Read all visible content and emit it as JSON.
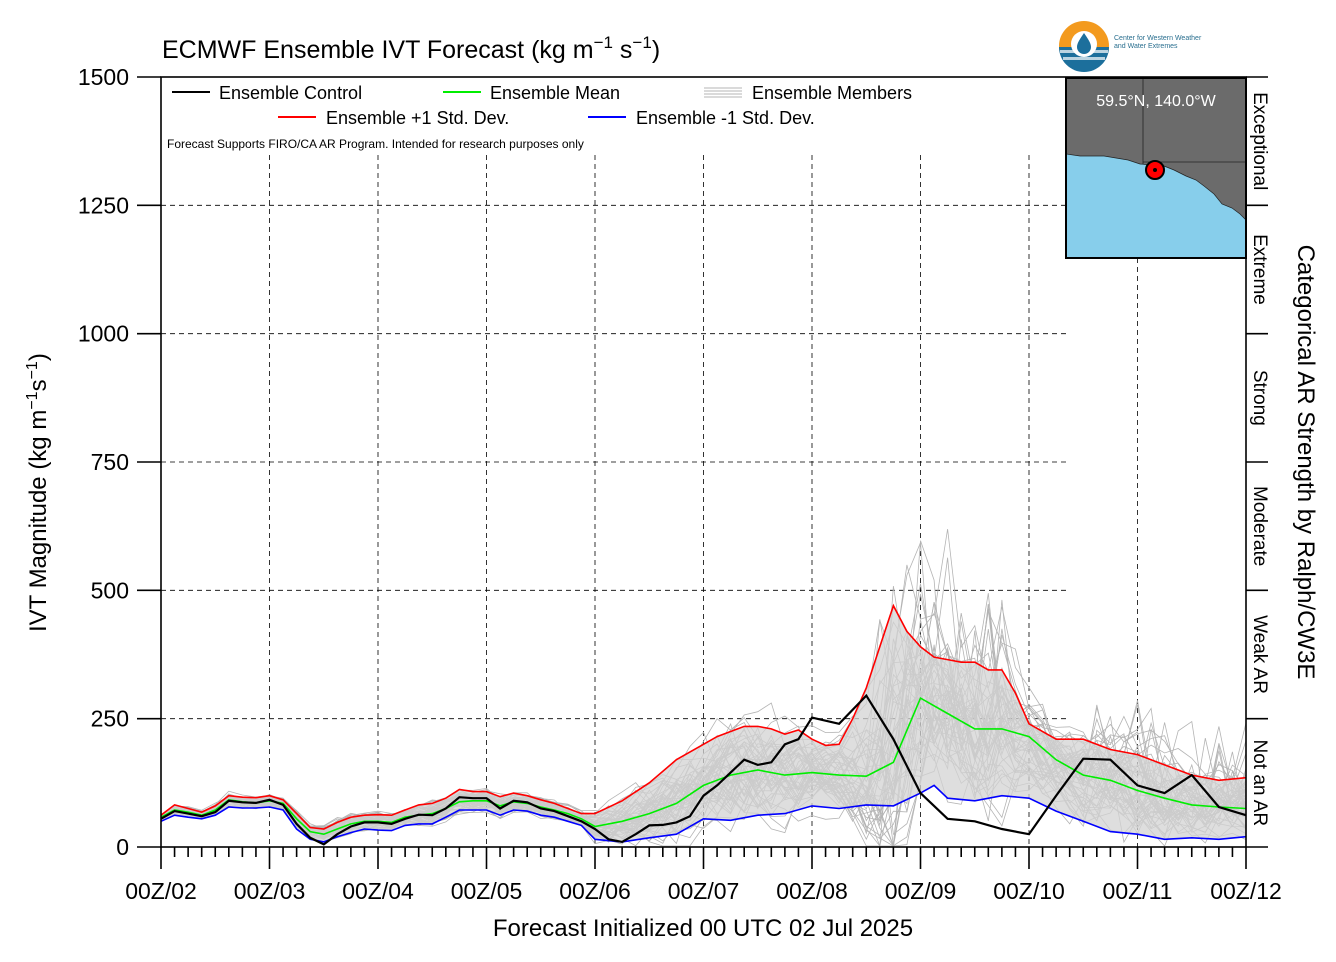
{
  "title_main": "ECMWF Ensemble IVT Forecast (kg m",
  "title_sup1": "−1",
  "title_mid": " s",
  "title_sup2": "−1",
  "title_end": ")",
  "ylabel_main": "IVT Magnitude (kg m",
  "ylabel_sup1": "−1",
  "ylabel_mid": "s",
  "ylabel_sup2": "−1",
  "ylabel_end": ")",
  "right_label": "Categorical AR Strength by Ralph/CW3E",
  "xlabel": "Forecast Initialized 00 UTC 02 Jul 2025",
  "disclaimer": "Forecast Supports FIRO/CA AR Program. Intended for research purposes only",
  "logo": {
    "org_line1": "Center for Western Weather",
    "org_line2": "and Water Extremes"
  },
  "inset": {
    "location": "59.5°N, 140.0°W",
    "ocean_color": "#87ceeb",
    "land_color": "#6b6b6b",
    "marker_color": "#ff0000"
  },
  "legend": {
    "control": "Ensemble Control",
    "mean": "Ensemble Mean",
    "members": "Ensemble Members",
    "plus": "Ensemble +1 Std. Dev.",
    "minus": "Ensemble -1 Std. Dev."
  },
  "categories": [
    {
      "label": "Not an AR",
      "from": 0,
      "to": 250
    },
    {
      "label": "Weak AR",
      "from": 250,
      "to": 500
    },
    {
      "label": "Moderate",
      "from": 500,
      "to": 750
    },
    {
      "label": "Strong",
      "from": 750,
      "to": 1000
    },
    {
      "label": "Extreme",
      "from": 1000,
      "to": 1250
    },
    {
      "label": "Exceptional",
      "from": 1250,
      "to": 1500
    }
  ],
  "chart_data": {
    "type": "line",
    "x_unit": "days since 00Z/02",
    "x_range": [
      0,
      10
    ],
    "xticks": [
      {
        "x": 0,
        "label": "00Z/02"
      },
      {
        "x": 1,
        "label": "00Z/03"
      },
      {
        "x": 2,
        "label": "00Z/04"
      },
      {
        "x": 3,
        "label": "00Z/05"
      },
      {
        "x": 4,
        "label": "00Z/06"
      },
      {
        "x": 5,
        "label": "00Z/07"
      },
      {
        "x": 6,
        "label": "00Z/08"
      },
      {
        "x": 7,
        "label": "00Z/09"
      },
      {
        "x": 8,
        "label": "00Z/10"
      },
      {
        "x": 9,
        "label": "00Z/11"
      },
      {
        "x": 10,
        "label": "00Z/12"
      }
    ],
    "ylim": [
      0,
      1500
    ],
    "yticks": [
      0,
      250,
      500,
      750,
      1000,
      1250,
      1500
    ],
    "grid": true,
    "legend_position": "top-left",
    "colors": {
      "control": "#000000",
      "mean": "#00ee00",
      "plus": "#ff0000",
      "minus": "#0000ff",
      "members": "#b4b4b4",
      "spread": "#d3d3d3"
    },
    "series": [
      {
        "name": "Ensemble Control",
        "key": "control",
        "x": [
          0,
          0.125,
          0.25,
          0.375,
          0.5,
          0.625,
          0.75,
          0.875,
          1,
          1.125,
          1.25,
          1.375,
          1.5,
          1.625,
          1.75,
          1.875,
          2,
          2.125,
          2.25,
          2.375,
          2.5,
          2.625,
          2.75,
          2.875,
          3,
          3.125,
          3.25,
          3.375,
          3.5,
          3.625,
          3.75,
          3.875,
          4,
          4.125,
          4.25,
          4.375,
          4.5,
          4.625,
          4.75,
          4.875,
          5,
          5.125,
          5.25,
          5.375,
          5.5,
          5.625,
          5.75,
          5.875,
          6,
          6.25,
          6.5,
          6.75,
          7,
          7.25,
          7.5,
          7.75,
          8,
          8.25,
          8.5,
          8.75,
          9,
          9.25,
          9.5,
          9.75,
          10
        ],
        "values": [
          55,
          70,
          65,
          60,
          68,
          90,
          87,
          86,
          92,
          82,
          45,
          18,
          5,
          25,
          40,
          48,
          48,
          45,
          55,
          63,
          62,
          75,
          97,
          95,
          95,
          75,
          90,
          87,
          75,
          70,
          60,
          50,
          35,
          15,
          10,
          25,
          42,
          43,
          48,
          60,
          100,
          120,
          145,
          170,
          160,
          165,
          200,
          210,
          252,
          240,
          295,
          210,
          105,
          55,
          50,
          35,
          25,
          100,
          172,
          170,
          120,
          105,
          140,
          78,
          62
        ]
      },
      {
        "name": "Ensemble Mean",
        "key": "mean",
        "x": [
          0,
          0.125,
          0.25,
          0.375,
          0.5,
          0.625,
          0.75,
          0.875,
          1,
          1.125,
          1.25,
          1.375,
          1.5,
          1.625,
          1.75,
          1.875,
          2,
          2.125,
          2.25,
          2.375,
          2.5,
          2.625,
          2.75,
          2.875,
          3,
          3.125,
          3.25,
          3.375,
          3.5,
          3.625,
          3.75,
          3.875,
          4,
          4.25,
          4.5,
          4.75,
          5,
          5.25,
          5.5,
          5.75,
          6,
          6.25,
          6.5,
          6.75,
          7,
          7.25,
          7.5,
          7.75,
          8,
          8.25,
          8.5,
          8.75,
          9,
          9.25,
          9.5,
          9.75,
          10
        ],
        "values": [
          58,
          72,
          68,
          62,
          72,
          92,
          88,
          86,
          90,
          85,
          55,
          30,
          25,
          35,
          45,
          50,
          50,
          48,
          58,
          62,
          65,
          75,
          88,
          90,
          90,
          80,
          88,
          85,
          78,
          72,
          65,
          55,
          40,
          50,
          65,
          85,
          120,
          140,
          150,
          140,
          145,
          140,
          138,
          165,
          290,
          260,
          230,
          230,
          215,
          170,
          140,
          130,
          110,
          95,
          82,
          78,
          75
        ]
      },
      {
        "name": "Ensemble +1 Std. Dev.",
        "key": "plus",
        "x": [
          0,
          0.125,
          0.25,
          0.375,
          0.5,
          0.625,
          0.75,
          0.875,
          1,
          1.125,
          1.25,
          1.375,
          1.5,
          1.625,
          1.75,
          1.875,
          2,
          2.125,
          2.25,
          2.375,
          2.5,
          2.625,
          2.75,
          2.875,
          3,
          3.125,
          3.25,
          3.375,
          3.5,
          3.625,
          3.75,
          3.875,
          4,
          4.25,
          4.5,
          4.75,
          5,
          5.125,
          5.25,
          5.375,
          5.5,
          5.625,
          5.75,
          5.875,
          6,
          6.125,
          6.25,
          6.375,
          6.5,
          6.625,
          6.75,
          6.875,
          7,
          7.125,
          7.25,
          7.375,
          7.5,
          7.625,
          7.75,
          7.875,
          8,
          8.25,
          8.5,
          8.75,
          9,
          9.25,
          9.5,
          9.75,
          10
        ],
        "values": [
          62,
          82,
          75,
          68,
          80,
          100,
          97,
          96,
          100,
          92,
          65,
          38,
          35,
          48,
          58,
          62,
          63,
          62,
          72,
          82,
          85,
          95,
          112,
          108,
          108,
          98,
          105,
          100,
          92,
          85,
          75,
          65,
          65,
          90,
          125,
          170,
          200,
          215,
          225,
          235,
          235,
          230,
          220,
          228,
          210,
          198,
          200,
          250,
          310,
          390,
          470,
          420,
          390,
          370,
          365,
          360,
          360,
          345,
          345,
          300,
          240,
          210,
          210,
          190,
          180,
          160,
          140,
          130,
          135
        ]
      },
      {
        "name": "Ensemble -1 Std. Dev.",
        "key": "minus",
        "x": [
          0,
          0.125,
          0.25,
          0.375,
          0.5,
          0.625,
          0.75,
          0.875,
          1,
          1.125,
          1.25,
          1.375,
          1.5,
          1.625,
          1.75,
          1.875,
          2,
          2.125,
          2.25,
          2.375,
          2.5,
          2.625,
          2.75,
          2.875,
          3,
          3.125,
          3.25,
          3.375,
          3.5,
          3.625,
          3.75,
          3.875,
          4,
          4.25,
          4.5,
          4.75,
          5,
          5.25,
          5.5,
          5.75,
          6,
          6.25,
          6.5,
          6.75,
          7,
          7.125,
          7.25,
          7.5,
          7.75,
          8,
          8.25,
          8.5,
          8.75,
          9,
          9.25,
          9.5,
          9.75,
          10
        ],
        "values": [
          50,
          62,
          58,
          55,
          62,
          78,
          76,
          76,
          78,
          72,
          35,
          15,
          10,
          20,
          28,
          35,
          33,
          32,
          42,
          45,
          45,
          58,
          72,
          72,
          72,
          62,
          72,
          70,
          62,
          58,
          50,
          42,
          15,
          10,
          18,
          25,
          55,
          52,
          62,
          65,
          80,
          75,
          82,
          80,
          105,
          120,
          95,
          90,
          100,
          95,
          70,
          50,
          30,
          25,
          15,
          18,
          15,
          20
        ]
      },
      {
        "name": "Ensemble Members",
        "key": "members",
        "values_mode": "spread",
        "x": [],
        "values": []
      }
    ]
  }
}
